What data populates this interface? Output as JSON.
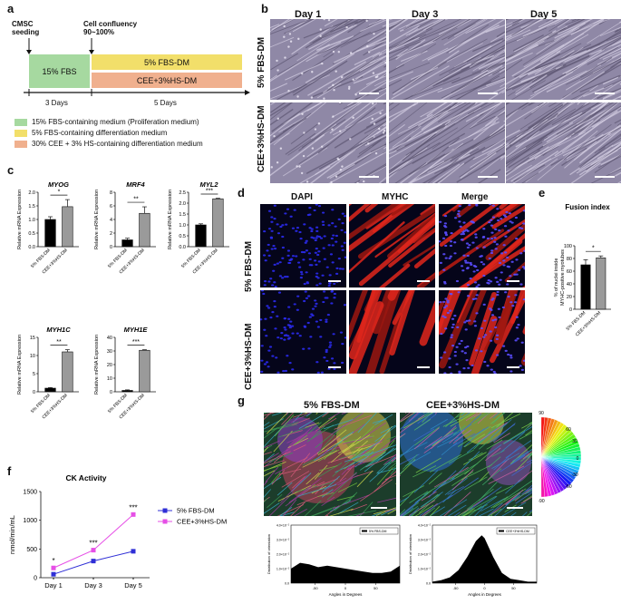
{
  "panel_letters": {
    "a": "a",
    "b": "b",
    "c": "c",
    "d": "d",
    "e": "e",
    "f": "f",
    "g": "g"
  },
  "panel_a": {
    "seeding": "CMSC\nseeding",
    "confluency": "Cell confluency\n90~100%",
    "fbs15": "15% FBS",
    "fbsdm": "5% FBS-DM",
    "ceedm": "CEE+3%HS-DM",
    "days3": "3 Days",
    "days5": "5 Days",
    "legend": [
      {
        "text": "15% FBS-containing medium (Proliferation medium)",
        "color": "#a6d9a0"
      },
      {
        "text": "5% FBS-containing differentiation medium",
        "color": "#f2df6a"
      },
      {
        "text": "30% CEE + 3% HS-containing differentiation medium",
        "color": "#f0b08e"
      }
    ]
  },
  "panel_b": {
    "days": [
      "Day 1",
      "Day 3",
      "Day 5"
    ],
    "rows": [
      "5% FBS-DM",
      "CEE+3%HS-DM"
    ]
  },
  "panel_c": {
    "ylabel": "Relative mRNA Expression",
    "xcats": [
      "5% FBS-DM",
      "CEE+3%HS-DM"
    ]
  },
  "panel_d": {
    "cols": [
      "DAPI",
      "MYHC",
      "Merge"
    ],
    "rows": [
      "5% FBS-DM",
      "CEE+3%HS-DM"
    ]
  },
  "panel_e": {
    "title": "Fusion index",
    "ylabel": "% of nuclei inside\nMYHC-positive myotubes"
  },
  "panel_f": {
    "title": "CK Activity",
    "ylabel": "nmol/min/mL"
  },
  "panel_g": {
    "titles": [
      "5% FBS-DM",
      "CEE+3%HS-DM"
    ],
    "legend1": "5% FBS-DM",
    "legend2": "CEE+3%HS-DM",
    "ylabel": "Distribution of orientation",
    "xlabel": "Angles in Degrees",
    "wheel_ticks": [
      "60",
      "30",
      "0",
      "-30",
      "-60",
      "90",
      "-90"
    ]
  },
  "chart_data": [
    {
      "type": "bar",
      "title": "MYOG",
      "categories": [
        "5% FBS-DM",
        "CEE+3%HS-DM"
      ],
      "values": [
        1.0,
        1.47
      ],
      "ylim": [
        0,
        2.0
      ],
      "yticks": [
        "0.0",
        "0.5",
        "1.0",
        "1.5",
        "2.0"
      ],
      "ylabel": "Relative mRNA Expression",
      "significance": "*"
    },
    {
      "type": "bar",
      "title": "MRF4",
      "categories": [
        "5% FBS-DM",
        "CEE+3%HS-DM"
      ],
      "values": [
        1.0,
        4.9
      ],
      "ylim": [
        0,
        8
      ],
      "yticks": [
        "0",
        "2",
        "4",
        "6",
        "8"
      ],
      "ylabel": "Relative mRNA Expression",
      "significance": "**"
    },
    {
      "type": "bar",
      "title": "MYL2",
      "categories": [
        "5% FBS-DM",
        "CEE+3%HS-DM"
      ],
      "values": [
        1.0,
        2.2
      ],
      "ylim": [
        0,
        2.5
      ],
      "yticks": [
        "0.0",
        "0.5",
        "1.0",
        "1.5",
        "2.0",
        "2.5"
      ],
      "ylabel": "Relative mRNA Expression",
      "significance": "***"
    },
    {
      "type": "bar",
      "title": "MYH1C",
      "categories": [
        "5% FBS-DM",
        "CEE+3%HS-DM"
      ],
      "values": [
        1.0,
        11.0
      ],
      "ylim": [
        0,
        15
      ],
      "yticks": [
        "0",
        "5",
        "10",
        "15"
      ],
      "ylabel": "Relative mRNA Expression",
      "significance": "**"
    },
    {
      "type": "bar",
      "title": "MYH1E",
      "categories": [
        "5% FBS-DM",
        "CEE+3%HS-DM"
      ],
      "values": [
        1.0,
        30.5
      ],
      "ylim": [
        0,
        40
      ],
      "yticks": [
        "0",
        "10",
        "20",
        "30",
        "40"
      ],
      "ylabel": "Relative mRNA Expression",
      "significance": "***"
    },
    {
      "type": "bar",
      "title": "Fusion index",
      "categories": [
        "5% FBS-DM",
        "CEE+3%HS-DM"
      ],
      "values": [
        70,
        81
      ],
      "ylim": [
        0,
        100
      ],
      "yticks": [
        "0",
        "20",
        "40",
        "60",
        "80",
        "100"
      ],
      "ylabel": "% of nuclei inside MYHC-positive myotubes",
      "significance": "*"
    },
    {
      "type": "line",
      "title": "CK Activity",
      "categories": [
        "Day 1",
        "Day 3",
        "Day 5"
      ],
      "ylabel": "nmol/min/mL",
      "ylim": [
        0,
        1500
      ],
      "yticks": [
        "0",
        "500",
        "1000",
        "1500"
      ],
      "series": [
        {
          "name": "5%  FBS-DM",
          "values": [
            60,
            290,
            460
          ],
          "color": "#2f2fd6"
        },
        {
          "name": "CEE+3%HS-DM",
          "values": [
            170,
            480,
            1100
          ],
          "color": "#e64fe6"
        }
      ],
      "significance": [
        "*",
        "***",
        "***"
      ]
    },
    {
      "type": "area",
      "title": "5% FBS-DM",
      "xlabel": "Angles in Degrees",
      "ylabel": "Distribution of orientation",
      "xticks": [
        "-50",
        "0",
        "50"
      ],
      "yticks": [
        "0.0",
        "1.0×10⁻²",
        "2.0×10⁻²",
        "3.0×10⁻²",
        "4.0×10⁻²"
      ],
      "ylim": [
        0,
        0.04
      ],
      "x": [
        -90,
        -75,
        -60,
        -45,
        -30,
        -15,
        0,
        15,
        30,
        45,
        60,
        75,
        90
      ],
      "values": [
        0.01,
        0.014,
        0.013,
        0.011,
        0.012,
        0.011,
        0.01,
        0.009,
        0.008,
        0.007,
        0.007,
        0.008,
        0.012
      ]
    },
    {
      "type": "area",
      "title": "CEE+3%HS-DM",
      "xlabel": "Angles in Degrees",
      "ylabel": "Distribution of orientation",
      "xticks": [
        "-50",
        "0",
        "50"
      ],
      "yticks": [
        "0.0",
        "1.0×10⁻²",
        "2.0×10⁻²",
        "3.0×10⁻²",
        "4.0×10⁻²"
      ],
      "ylim": [
        0,
        0.04
      ],
      "x": [
        -90,
        -75,
        -60,
        -45,
        -30,
        -15,
        -5,
        0,
        15,
        30,
        45,
        60,
        75,
        90
      ],
      "values": [
        0.001,
        0.002,
        0.004,
        0.009,
        0.018,
        0.029,
        0.033,
        0.031,
        0.018,
        0.007,
        0.003,
        0.002,
        0.001,
        0.001
      ]
    }
  ]
}
